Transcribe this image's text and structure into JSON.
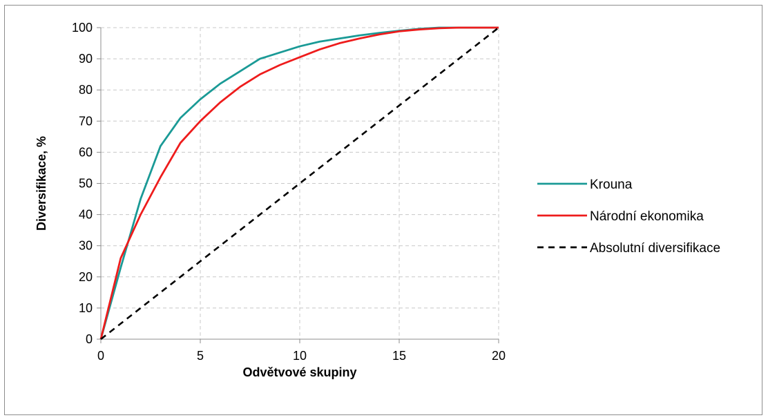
{
  "chart_data": {
    "type": "line",
    "title": "",
    "xlabel": "Odvětvové skupiny",
    "ylabel": "Diversifikace, %",
    "xlim": [
      0,
      20
    ],
    "ylim": [
      0,
      100
    ],
    "x_ticks": [
      0,
      5,
      10,
      15,
      20
    ],
    "y_ticks": [
      0,
      10,
      20,
      30,
      40,
      50,
      60,
      70,
      80,
      90,
      100
    ],
    "grid": true,
    "legend_position": "right",
    "series": [
      {
        "name": "Krouna",
        "color": "#1a9a96",
        "dash": "solid",
        "x": [
          0,
          1,
          2,
          3,
          4,
          5,
          6,
          7,
          8,
          9,
          10,
          11,
          12,
          13,
          14,
          15,
          16,
          17,
          18,
          19,
          20
        ],
        "values": [
          0,
          23,
          45,
          62,
          71,
          77,
          82,
          86,
          90,
          92,
          94,
          95.5,
          96.5,
          97.5,
          98.3,
          99,
          99.6,
          100,
          100,
          100,
          100
        ]
      },
      {
        "name": "Národní ekonomika",
        "color": "#ee1c1c",
        "dash": "solid",
        "x": [
          0,
          1,
          2,
          3,
          4,
          5,
          6,
          7,
          8,
          9,
          10,
          11,
          12,
          13,
          14,
          15,
          16,
          17,
          18,
          19,
          20
        ],
        "values": [
          0,
          26,
          40,
          52,
          63,
          70,
          76,
          81,
          85,
          88,
          90.5,
          93,
          95,
          96.5,
          97.8,
          98.8,
          99.4,
          99.8,
          100,
          100,
          100
        ]
      },
      {
        "name": "Absolutní diversifikace",
        "color": "#000000",
        "dash": "dashed",
        "x": [
          0,
          20
        ],
        "values": [
          0,
          100
        ]
      }
    ]
  }
}
